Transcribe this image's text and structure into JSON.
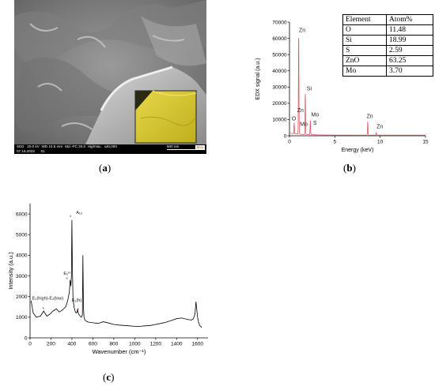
{
  "captions": {
    "a": "a",
    "b": "b",
    "c": "c"
  },
  "panel_a": {
    "type": "sem-micrograph",
    "databar": {
      "detector": "SED",
      "voltage": "20.0 kV",
      "wd": "WD 10.5 mm",
      "std": "Std.-PC 30.0",
      "vac": "HighVac.",
      "mag": "x40,000",
      "scale": "500 nm",
      "date": "07.16.2022",
      "image_no": "01",
      "logo": "JEOL"
    }
  },
  "chart_data": [
    {
      "id": "edx",
      "type": "line",
      "xlabel": "Energy (keV)",
      "ylabel": "EDX signal (a.u.)",
      "xlim": [
        0,
        15
      ],
      "ylim": [
        0,
        70000
      ],
      "xticks": [
        "0",
        "5",
        "10",
        "15"
      ],
      "yticks": [
        "0",
        "10000",
        "20000",
        "30000",
        "40000",
        "50000",
        "60000",
        "70000"
      ],
      "color": "#e35a68",
      "peaks": [
        {
          "x": 0.52,
          "y": 7000
        },
        {
          "x": 1.01,
          "y": 63000
        },
        {
          "x": 1.05,
          "y": 9000
        },
        {
          "x": 1.74,
          "y": 27000
        },
        {
          "x": 2.29,
          "y": 5500
        },
        {
          "x": 2.31,
          "y": 4000
        },
        {
          "x": 8.63,
          "y": 8500
        },
        {
          "x": 9.57,
          "y": 1500
        }
      ],
      "peak_labels": [
        {
          "text": "Zn",
          "x": 1.05,
          "y": 64000
        },
        {
          "text": "Si",
          "x": 1.9,
          "y": 28000
        },
        {
          "text": "Zn",
          "x": 0.85,
          "y": 14500
        },
        {
          "text": "Mo",
          "x": 2.4,
          "y": 12000
        },
        {
          "text": "O",
          "x": 0.25,
          "y": 9500
        },
        {
          "text": "Mo",
          "x": 1.15,
          "y": 6000
        },
        {
          "text": "S",
          "x": 2.6,
          "y": 6800
        },
        {
          "text": "Zn",
          "x": 8.5,
          "y": 11000
        },
        {
          "text": "Zn",
          "x": 9.6,
          "y": 4500
        }
      ],
      "table": {
        "headers": [
          "Element",
          "Atom%"
        ],
        "rows": [
          [
            "O",
            "11.48"
          ],
          [
            "Si",
            "18.99"
          ],
          [
            "S",
            "2.59"
          ],
          [
            "ZnO",
            "63.25"
          ],
          [
            "Mo",
            "3.70"
          ]
        ]
      }
    },
    {
      "id": "raman",
      "type": "line",
      "xlabel": "Wavenumber (cm⁻¹)",
      "ylabel": "Intensity (a.u.)",
      "xlim": [
        0,
        1700
      ],
      "ylim": [
        0,
        6500
      ],
      "xticks": [
        "0",
        "200",
        "400",
        "600",
        "800",
        "1000",
        "1200",
        "1400",
        "1600"
      ],
      "yticks": [
        "0",
        "1000",
        "2000",
        "3000",
        "4000",
        "5000",
        "6000"
      ],
      "color": "#000000",
      "series_x": [
        10,
        30,
        60,
        100,
        130,
        160,
        190,
        220,
        250,
        280,
        310,
        340,
        360,
        375,
        383,
        390,
        395,
        400,
        404,
        410,
        420,
        430,
        440,
        450,
        455,
        460,
        470,
        480,
        490,
        500,
        505,
        510,
        515,
        525,
        540,
        560,
        600,
        650,
        700,
        750,
        800,
        850,
        900,
        950,
        1000,
        1050,
        1100,
        1150,
        1200,
        1250,
        1300,
        1350,
        1400,
        1450,
        1500,
        1540,
        1560,
        1575,
        1585,
        1592,
        1600,
        1610,
        1620,
        1640
      ],
      "series_y": [
        1800,
        1200,
        1000,
        1050,
        1300,
        1050,
        1150,
        1300,
        1400,
        1250,
        1350,
        1500,
        1800,
        2200,
        2800,
        2500,
        3000,
        5700,
        3500,
        1900,
        1500,
        1300,
        1200,
        1250,
        1400,
        1200,
        1100,
        1050,
        1000,
        1100,
        4000,
        1500,
        1000,
        850,
        800,
        760,
        730,
        700,
        780,
        720,
        650,
        620,
        600,
        580,
        560,
        560,
        580,
        600,
        650,
        700,
        760,
        840,
        930,
        960,
        900,
        860,
        920,
        1150,
        1750,
        1400,
        1000,
        750,
        600,
        500
      ],
      "annotations": [
        {
          "text": "A₁ₒ",
          "x": 440,
          "y": 6000,
          "marker": "blue",
          "mx": 395,
          "my": 5850
        },
        {
          "text": "E₂ᴴ",
          "x": 320,
          "y": 3050,
          "marker": "blue",
          "mx": 360,
          "my": 2850
        },
        {
          "text": "E₂(high)-E₂(low)",
          "x": 20,
          "y": 1850,
          "marker": "red",
          "mx": 135,
          "my": 1400
        },
        {
          "text": "E₁(h)",
          "x": 400,
          "y": 1750,
          "marker": "red",
          "mx": 465,
          "my": 1350
        }
      ],
      "extra_markers": [
        {
          "marker": "red",
          "mx": 260,
          "my": 1350
        }
      ]
    }
  ]
}
